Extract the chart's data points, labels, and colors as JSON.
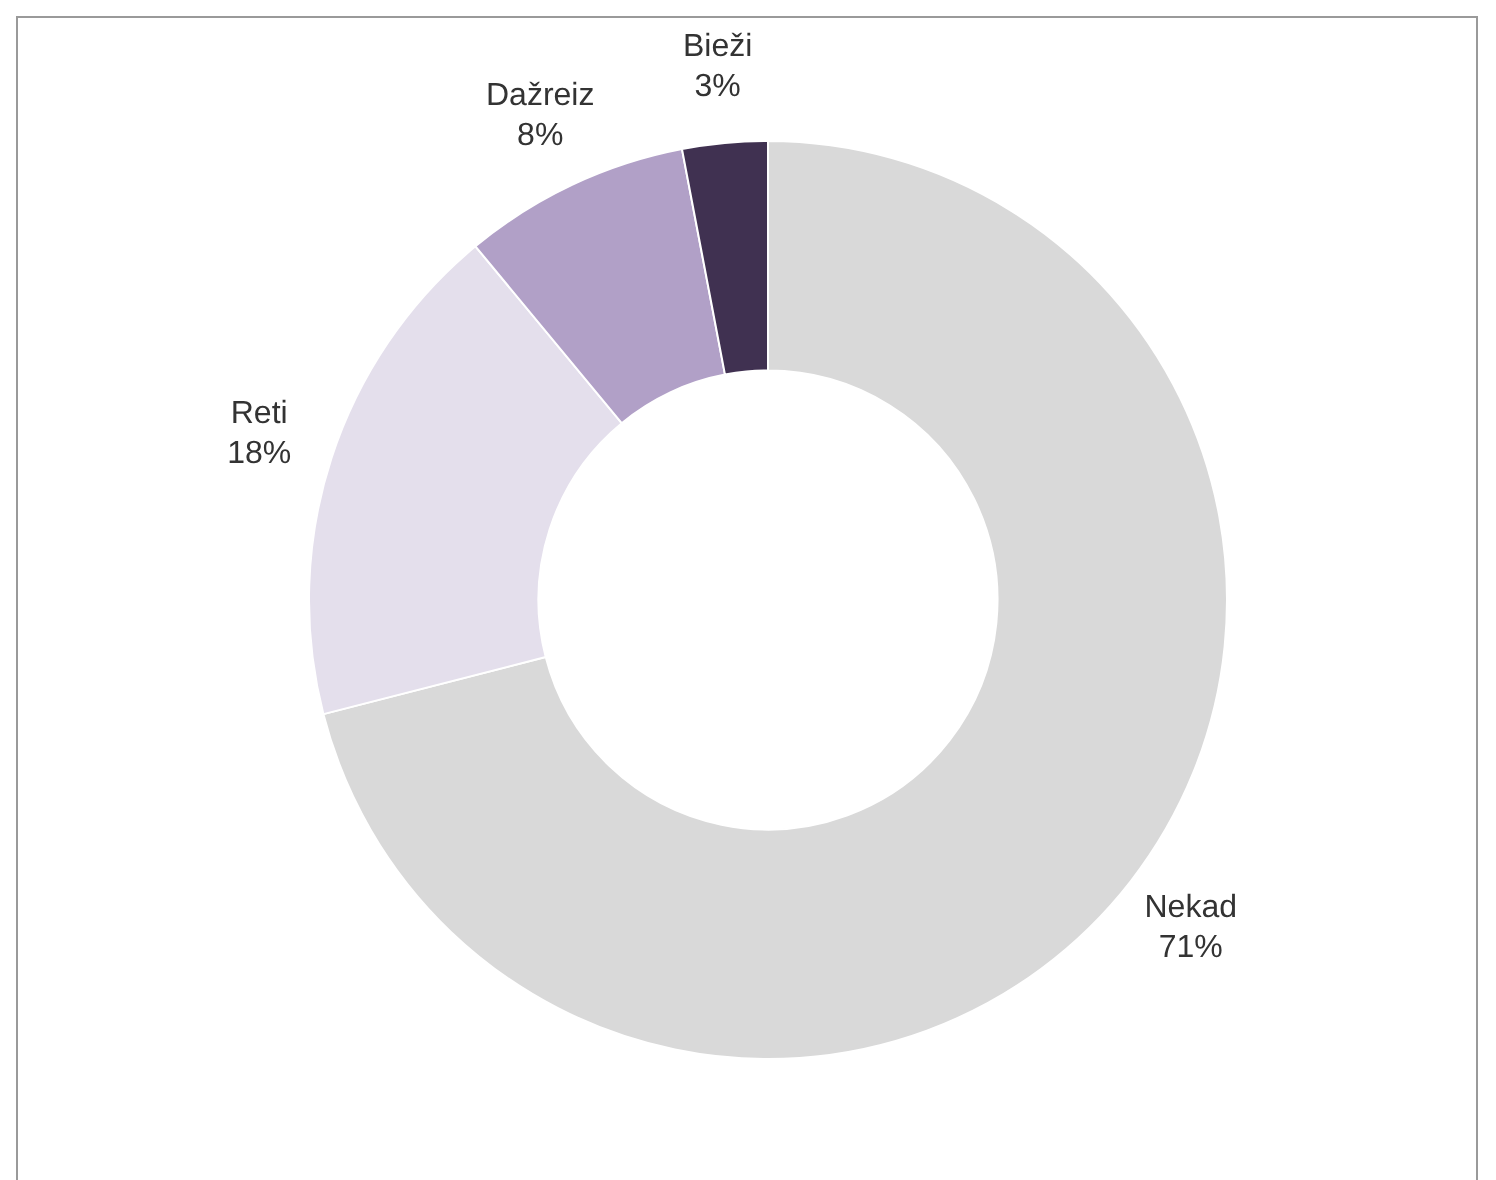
{
  "chart_data": {
    "type": "donut",
    "categories": [
      "Nekad",
      "Reti",
      "Dažreiz",
      "Bieži"
    ],
    "values": [
      71,
      18,
      8,
      3
    ],
    "colors": [
      "#d9d9d9",
      "#e4dfec",
      "#b1a0c7",
      "#403151"
    ],
    "value_labels": [
      "71%",
      "18%",
      "8%",
      "3%"
    ],
    "legend": false
  }
}
